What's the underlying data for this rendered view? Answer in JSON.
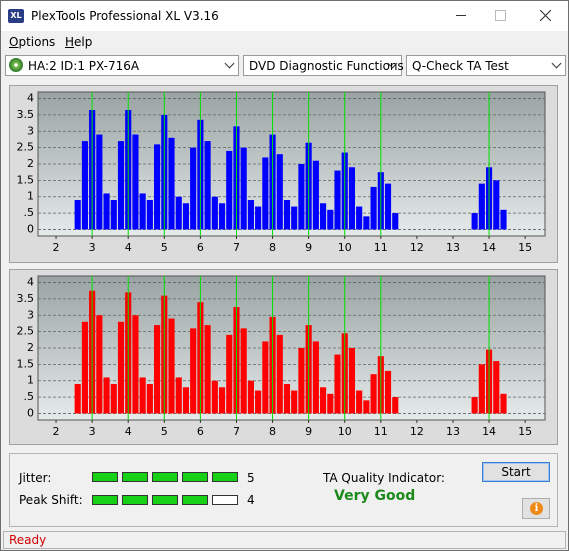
{
  "window": {
    "title": "PlexTools Professional XL V3.16"
  },
  "menu": [
    "Options",
    "Help"
  ],
  "toolbar": {
    "drive": "HA:2 ID:1  PX-716A",
    "function": "DVD Diagnostic Functions",
    "test": "Q-Check TA Test"
  },
  "chart_data": [
    {
      "type": "bar",
      "color": "#0000ff",
      "marker_color": "#00e000",
      "x": [
        2.6,
        2.8,
        3,
        3.2,
        3.4,
        3.6,
        3.8,
        4,
        4.2,
        4.4,
        4.6,
        4.8,
        5,
        5.2,
        5.4,
        5.6,
        5.8,
        6,
        6.2,
        6.4,
        6.6,
        6.8,
        7,
        7.2,
        7.4,
        7.6,
        7.8,
        8,
        8.2,
        8.4,
        8.6,
        8.8,
        9,
        9.2,
        9.4,
        9.6,
        9.8,
        10,
        10.2,
        10.4,
        10.6,
        10.8,
        11,
        11.2,
        11.4,
        13.6,
        13.8,
        14,
        14.2,
        14.4
      ],
      "values": [
        0.9,
        2.7,
        3.65,
        2.9,
        1.1,
        0.9,
        2.7,
        3.65,
        2.9,
        1.1,
        0.9,
        2.6,
        3.5,
        2.8,
        1.0,
        0.8,
        2.5,
        3.35,
        2.7,
        1.0,
        0.8,
        2.4,
        3.15,
        2.5,
        0.9,
        0.7,
        2.2,
        2.9,
        2.3,
        0.9,
        0.7,
        2.0,
        2.65,
        2.1,
        0.8,
        0.6,
        1.8,
        2.35,
        1.9,
        0.7,
        0.4,
        1.3,
        1.75,
        1.4,
        0.5,
        0.5,
        1.4,
        1.9,
        1.5,
        0.6
      ],
      "markers": [
        3,
        4,
        5,
        6,
        7,
        8,
        9,
        10,
        11,
        14
      ],
      "xlim": [
        1.5,
        15.55
      ],
      "ylim": [
        -0.2,
        4.2
      ],
      "xticks": [
        2,
        3,
        4,
        5,
        6,
        7,
        8,
        9,
        10,
        11,
        12,
        13,
        14,
        15
      ],
      "yticks": [
        0,
        {
          "value": 0.5,
          "label": ".5"
        },
        1,
        1.5,
        2,
        2.5,
        3,
        3.5,
        4
      ],
      "grid": true
    },
    {
      "type": "bar",
      "color": "#ff0000",
      "marker_color": "#00e000",
      "x": [
        2.6,
        2.8,
        3,
        3.2,
        3.4,
        3.6,
        3.8,
        4,
        4.2,
        4.4,
        4.6,
        4.8,
        5,
        5.2,
        5.4,
        5.6,
        5.8,
        6,
        6.2,
        6.4,
        6.6,
        6.8,
        7,
        7.2,
        7.4,
        7.6,
        7.8,
        8,
        8.2,
        8.4,
        8.6,
        8.8,
        9,
        9.2,
        9.4,
        9.6,
        9.8,
        10,
        10.2,
        10.4,
        10.6,
        10.8,
        11,
        11.2,
        11.4,
        13.6,
        13.8,
        14,
        14.2,
        14.4
      ],
      "values": [
        0.9,
        2.8,
        3.75,
        3.0,
        1.1,
        0.9,
        2.8,
        3.7,
        3.0,
        1.1,
        0.9,
        2.7,
        3.6,
        2.9,
        1.1,
        0.8,
        2.6,
        3.4,
        2.7,
        1.0,
        0.8,
        2.4,
        3.25,
        2.6,
        1.0,
        0.7,
        2.2,
        2.95,
        2.4,
        0.9,
        0.7,
        2.0,
        2.7,
        2.2,
        0.8,
        0.6,
        1.8,
        2.45,
        2.0,
        0.7,
        0.4,
        1.2,
        1.75,
        1.3,
        0.5,
        0.5,
        1.5,
        1.95,
        1.6,
        0.6
      ],
      "markers": [
        3,
        4,
        5,
        6,
        7,
        8,
        9,
        10,
        11,
        14
      ],
      "xlim": [
        1.5,
        15.55
      ],
      "ylim": [
        -0.2,
        4.2
      ],
      "xticks": [
        2,
        3,
        4,
        5,
        6,
        7,
        8,
        9,
        10,
        11,
        12,
        13,
        14,
        15
      ],
      "yticks": [
        0,
        {
          "value": 0.5,
          "label": ".5"
        },
        1,
        1.5,
        2,
        2.5,
        3,
        3.5,
        4
      ],
      "grid": true
    }
  ],
  "quality": {
    "jitter": {
      "label": "Jitter:",
      "value": 5
    },
    "peak_shift": {
      "label": "Peak Shift:",
      "value": 4
    },
    "indicator_label": "TA Quality Indicator:",
    "indicator_value": "Very Good"
  },
  "buttons": {
    "start": "Start"
  },
  "status": "Ready"
}
